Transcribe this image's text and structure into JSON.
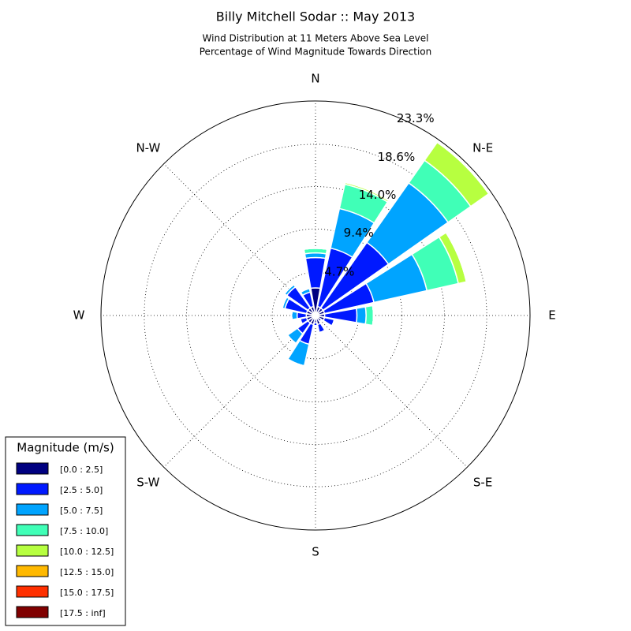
{
  "chart_data": {
    "type": "windrose",
    "title": "Billy Mitchell Sodar :: May 2013",
    "subtitle": [
      "Wind Distribution at 11 Meters Above Sea Level",
      "Percentage of Wind Magnitude Towards Direction"
    ],
    "categories": [
      "N",
      null,
      "N-E",
      null,
      "E",
      null,
      "S-E",
      null,
      "S",
      null,
      "S-W",
      null,
      "W",
      null,
      "N-W",
      null
    ],
    "legend_title": "Magnitude (m/s)",
    "legend": "lower left",
    "grid": true,
    "ylim": [
      0,
      23.3
    ],
    "yticks": [
      {
        "value": 4.7,
        "label": "4.7%"
      },
      {
        "value": 9.4,
        "label": "9.4%"
      },
      {
        "value": 14.0,
        "label": "14.0%"
      },
      {
        "value": 18.6,
        "label": "18.6%"
      },
      {
        "value": 23.3,
        "label": "23.3%"
      }
    ],
    "series": [
      {
        "name": "[0.0 : 2.5]",
        "color": "#000080",
        "values": [
          3.0,
          1.0,
          1.0,
          1.0,
          1.0,
          1.0,
          0.8,
          1.0,
          0.8,
          1.0,
          1.0,
          1.0,
          1.0,
          1.0,
          1.0,
          1.0
        ]
      },
      {
        "name": "[2.5 : 5.0]",
        "color": "#0019ff",
        "values": [
          3.3,
          6.5,
          8.7,
          5.5,
          3.5,
          1.1,
          0,
          0.9,
          0.3,
          2.2,
          1.4,
          0.7,
          1.0,
          2.4,
          2.8,
          1.6
        ]
      },
      {
        "name": "[5.0 : 7.5]",
        "color": "#00a4ff",
        "values": [
          0.5,
          4.4,
          7.9,
          5.9,
          1.0,
          0,
          0,
          0,
          0,
          2.4,
          1.3,
          0,
          0.6,
          0.3,
          0.3,
          0.4
        ]
      },
      {
        "name": "[7.5 : 10.0]",
        "color": "#40ffb7",
        "values": [
          0.5,
          2.7,
          3.0,
          3.5,
          0.8,
          0,
          0,
          0,
          0,
          0,
          0,
          0,
          0,
          0,
          0,
          0
        ]
      },
      {
        "name": "[10.0 : 12.5]",
        "color": "#b7ff40",
        "values": [
          0,
          0.2,
          2.4,
          0.9,
          0,
          0,
          0,
          0,
          0,
          0,
          0,
          0,
          0,
          0,
          0,
          0
        ]
      },
      {
        "name": "[12.5 : 15.0]",
        "color": "#ffb900",
        "values": [
          0,
          0.1,
          0,
          0,
          0,
          0,
          0,
          0,
          0,
          0,
          0,
          0,
          0,
          0,
          0,
          0
        ]
      },
      {
        "name": "[15.0 : 17.5]",
        "color": "#ff3000",
        "values": [
          0,
          0.1,
          0,
          0,
          0,
          0,
          0,
          0,
          0,
          0,
          0,
          0,
          0,
          0,
          0,
          0
        ]
      },
      {
        "name": "[17.5 : inf]",
        "color": "#800000",
        "values": [
          0,
          0,
          0,
          0,
          0,
          0,
          0,
          0,
          0,
          0,
          0,
          0,
          0,
          0,
          0,
          0
        ]
      }
    ]
  }
}
